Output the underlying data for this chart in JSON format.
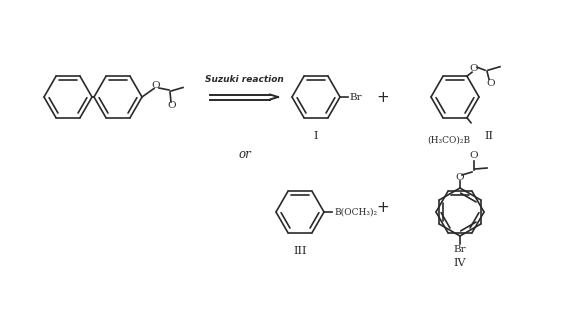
{
  "background_color": "#ffffff",
  "line_color": "#2a2a2a",
  "arrow_label": "Suzuki reaction",
  "label_I": "I",
  "label_II": "II",
  "label_III": "III",
  "label_IV": "IV",
  "label_or": "or",
  "boronate1": "(H₃CO)₂B",
  "boronate2": "B(OCH₃)₂",
  "br_label": "Br",
  "br_label2": "Br",
  "O_ester": "O",
  "O_carbonyl": "O"
}
